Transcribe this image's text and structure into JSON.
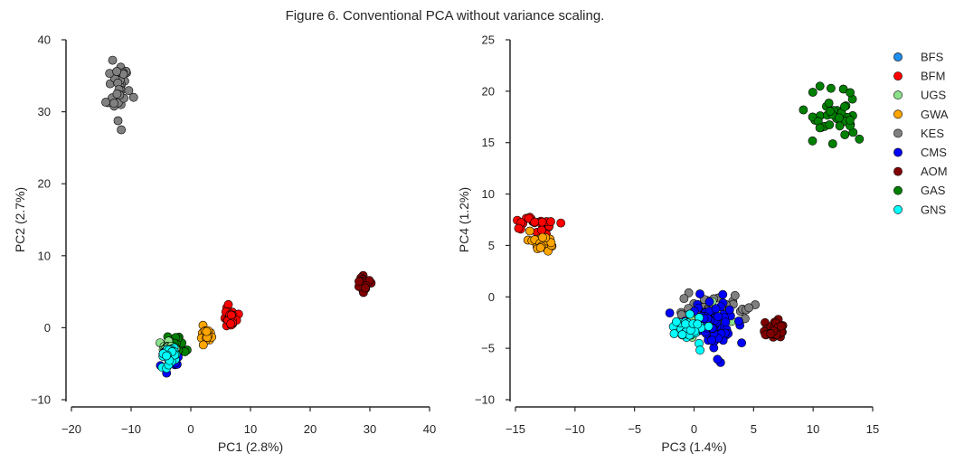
{
  "figure_title": "Figure 6. Conventional PCA without variance scaling.",
  "chart_data": [
    {
      "type": "scatter",
      "xlabel": "PC1 (2.8%)",
      "ylabel": "PC2 (2.7%)",
      "xlim": [
        -20,
        40
      ],
      "ylim": [
        -10,
        40
      ],
      "xticks": [
        -20,
        -10,
        0,
        10,
        20,
        30,
        40
      ],
      "yticks": [
        -10,
        0,
        10,
        20,
        30,
        40
      ],
      "xtick_labels": [
        "−20",
        "−10",
        "0",
        "10",
        "20",
        "30",
        "40"
      ],
      "ytick_labels": [
        "−10",
        "0",
        "10",
        "20",
        "30",
        "40"
      ],
      "grid": false,
      "clusters": [
        {
          "group": "KES",
          "center": [
            -12,
            33.5
          ],
          "spread": [
            1.0,
            2.8
          ],
          "count": 36
        },
        {
          "group": "AOM",
          "center": [
            29,
            6
          ],
          "spread": [
            0.6,
            0.7
          ],
          "count": 25
        },
        {
          "group": "BFM",
          "center": [
            6.5,
            1.5
          ],
          "spread": [
            0.7,
            0.9
          ],
          "count": 22
        },
        {
          "group": "GWA",
          "center": [
            2.7,
            -0.5
          ],
          "spread": [
            0.6,
            0.8
          ],
          "count": 22
        },
        {
          "group": "GAS",
          "center": [
            -2.5,
            -2.5
          ],
          "spread": [
            0.8,
            0.8
          ],
          "count": 28
        },
        {
          "group": "UGS",
          "center": [
            -3.5,
            -3
          ],
          "spread": [
            0.9,
            0.8
          ],
          "count": 20
        },
        {
          "group": "CMS",
          "center": [
            -3.6,
            -4.2
          ],
          "spread": [
            0.9,
            0.8
          ],
          "count": 30
        },
        {
          "group": "GNS",
          "center": [
            -3.5,
            -3.8
          ],
          "spread": [
            0.8,
            0.7
          ],
          "count": 32
        }
      ]
    },
    {
      "type": "scatter",
      "xlabel": "PC3 (1.4%)",
      "ylabel": "PC4 (1.2%)",
      "xlim": [
        -15,
        15
      ],
      "ylim": [
        -10,
        25
      ],
      "xticks": [
        -15,
        -10,
        -5,
        0,
        5,
        10,
        15
      ],
      "yticks": [
        -10,
        -5,
        0,
        5,
        10,
        15,
        20,
        25
      ],
      "xtick_labels": [
        "−15",
        "−10",
        "−5",
        "0",
        "5",
        "10",
        "15"
      ],
      "ytick_labels": [
        "−10",
        "−5",
        "0",
        "5",
        "10",
        "15",
        "20",
        "25"
      ],
      "grid": false,
      "legend_position": "top-right",
      "clusters": [
        {
          "group": "GAS",
          "center": [
            11.8,
            17.5
          ],
          "spread": [
            1.3,
            1.7
          ],
          "count": 40
        },
        {
          "group": "BFM",
          "center": [
            -13.5,
            7
          ],
          "spread": [
            1.0,
            0.5
          ],
          "count": 25
        },
        {
          "group": "GWA",
          "center": [
            -13,
            5.3
          ],
          "spread": [
            0.8,
            0.6
          ],
          "count": 25
        },
        {
          "group": "KES",
          "center": [
            1.5,
            -1.0
          ],
          "spread": [
            2.0,
            0.7
          ],
          "count": 30
        },
        {
          "group": "AOM",
          "center": [
            6.8,
            -3.4
          ],
          "spread": [
            0.6,
            0.6
          ],
          "count": 25
        },
        {
          "group": "UGS",
          "center": [
            1.0,
            -2.6
          ],
          "spread": [
            1.2,
            1.0
          ],
          "count": 20
        },
        {
          "group": "CMS",
          "center": [
            1.5,
            -2.4
          ],
          "spread": [
            1.2,
            1.4
          ],
          "count": 70
        },
        {
          "group": "GNS",
          "center": [
            -0.5,
            -3.0
          ],
          "spread": [
            0.8,
            0.8
          ],
          "count": 30
        }
      ]
    }
  ],
  "legend": [
    {
      "label": "BFS",
      "color": "#1f8ff1"
    },
    {
      "label": "BFM",
      "color": "#ff0000"
    },
    {
      "label": "UGS",
      "color": "#8be28b"
    },
    {
      "label": "GWA",
      "color": "#ffa500"
    },
    {
      "label": "KES",
      "color": "#808080"
    },
    {
      "label": "CMS",
      "color": "#0000ff"
    },
    {
      "label": "AOM",
      "color": "#800000"
    },
    {
      "label": "GAS",
      "color": "#008000"
    },
    {
      "label": "GNS",
      "color": "#00ffff"
    }
  ]
}
